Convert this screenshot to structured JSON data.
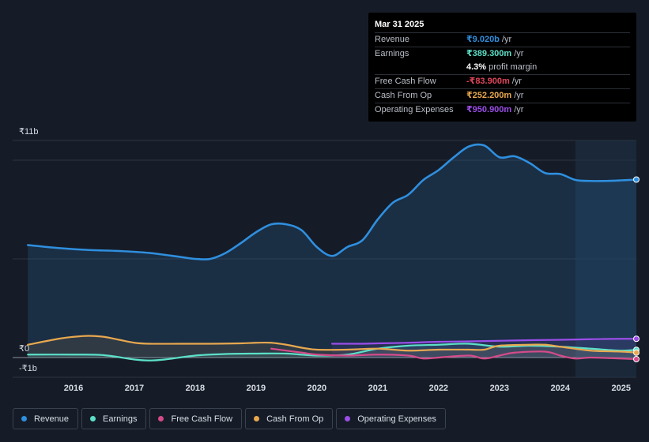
{
  "tooltip": {
    "date": "Mar 31 2025",
    "rows": [
      {
        "label": "Revenue",
        "value": "₹9.020b",
        "unit": "/yr",
        "color": "#2f8fdf"
      },
      {
        "label": "Earnings",
        "value": "₹389.300m",
        "unit": "/yr",
        "color": "#5ce0c8"
      },
      {
        "label": "",
        "value": "4.3%",
        "unit": "profit margin",
        "color": "#ffffff"
      },
      {
        "label": "Free Cash Flow",
        "value": "-₹83.900m",
        "unit": "/yr",
        "color": "#e0455a"
      },
      {
        "label": "Cash From Op",
        "value": "₹252.200m",
        "unit": "/yr",
        "color": "#e8a84f"
      },
      {
        "label": "Operating Expenses",
        "value": "₹950.900m",
        "unit": "/yr",
        "color": "#9b4ee8"
      }
    ]
  },
  "legend": [
    {
      "label": "Revenue",
      "color": "#2f8fdf"
    },
    {
      "label": "Earnings",
      "color": "#5ce0c8"
    },
    {
      "label": "Free Cash Flow",
      "color": "#d54b8a"
    },
    {
      "label": "Cash From Op",
      "color": "#e8a84f"
    },
    {
      "label": "Operating Expenses",
      "color": "#9b4ee8"
    }
  ],
  "chart_data": {
    "type": "line",
    "title": "",
    "xlabel": "",
    "ylabel": "",
    "y_top_label": "₹11b",
    "y_zero_label": "₹0",
    "y_bottom_label": "-₹1b",
    "ylim": [
      -1,
      11
    ],
    "xlim": [
      2015.0,
      2025.25
    ],
    "x_ticks": [
      "2016",
      "2017",
      "2018",
      "2019",
      "2020",
      "2021",
      "2022",
      "2023",
      "2024",
      "2025"
    ],
    "x_tick_values": [
      2016,
      2017,
      2018,
      2019,
      2020,
      2021,
      2022,
      2023,
      2024,
      2025
    ],
    "forecast_start": 2024.25,
    "series": [
      {
        "name": "Revenue",
        "color": "#2f8fdf",
        "fill": true,
        "x": [
          2015.25,
          2015.75,
          2016.25,
          2016.75,
          2017.25,
          2017.75,
          2018.0,
          2018.25,
          2018.5,
          2018.75,
          2019.0,
          2019.25,
          2019.5,
          2019.75,
          2020.0,
          2020.25,
          2020.5,
          2020.75,
          2021.0,
          2021.25,
          2021.5,
          2021.75,
          2022.0,
          2022.25,
          2022.5,
          2022.75,
          2023.0,
          2023.25,
          2023.5,
          2023.75,
          2024.0,
          2024.25,
          2024.5,
          2024.75,
          2025.0,
          2025.25
        ],
        "y": [
          5.7,
          5.55,
          5.45,
          5.4,
          5.3,
          5.1,
          5.0,
          5.0,
          5.3,
          5.8,
          6.35,
          6.75,
          6.75,
          6.45,
          5.6,
          5.15,
          5.6,
          5.95,
          7.0,
          7.85,
          8.25,
          9.0,
          9.5,
          10.15,
          10.7,
          10.75,
          10.15,
          10.2,
          9.85,
          9.35,
          9.3,
          9.0,
          8.95,
          8.95,
          8.98,
          9.02
        ]
      },
      {
        "name": "Earnings",
        "color": "#5ce0c8",
        "fill": true,
        "x": [
          2015.25,
          2016.0,
          2016.5,
          2017.0,
          2017.25,
          2017.5,
          2018.0,
          2018.5,
          2019.0,
          2019.5,
          2020.0,
          2020.5,
          2021.0,
          2021.5,
          2022.0,
          2022.5,
          2023.0,
          2023.5,
          2024.0,
          2024.5,
          2025.0,
          2025.25
        ],
        "y": [
          0.15,
          0.15,
          0.12,
          -0.1,
          -0.15,
          -0.1,
          0.1,
          0.18,
          0.2,
          0.2,
          0.1,
          0.15,
          0.45,
          0.6,
          0.65,
          0.7,
          0.55,
          0.6,
          0.55,
          0.45,
          0.35,
          0.39
        ]
      },
      {
        "name": "Free Cash Flow",
        "color": "#d54b8a",
        "fill": false,
        "x": [
          2019.25,
          2019.75,
          2020.0,
          2020.5,
          2021.0,
          2021.5,
          2021.75,
          2022.0,
          2022.5,
          2022.75,
          2023.0,
          2023.25,
          2023.75,
          2024.0,
          2024.25,
          2024.5,
          2025.0,
          2025.25
        ],
        "y": [
          0.45,
          0.25,
          0.15,
          0.1,
          0.15,
          0.1,
          -0.05,
          0.0,
          0.1,
          -0.05,
          0.1,
          0.25,
          0.3,
          0.1,
          -0.05,
          0.0,
          -0.05,
          -0.08
        ]
      },
      {
        "name": "Cash From Op",
        "color": "#e8a84f",
        "fill": true,
        "x": [
          2015.25,
          2015.75,
          2016.0,
          2016.25,
          2016.5,
          2016.75,
          2017.0,
          2017.25,
          2017.75,
          2018.25,
          2018.75,
          2019.0,
          2019.25,
          2019.5,
          2019.75,
          2020.0,
          2020.5,
          2021.0,
          2021.5,
          2022.0,
          2022.5,
          2022.75,
          2023.0,
          2023.5,
          2023.75,
          2024.0,
          2024.5,
          2025.0,
          2025.25
        ],
        "y": [
          0.65,
          0.95,
          1.05,
          1.1,
          1.05,
          0.9,
          0.75,
          0.7,
          0.7,
          0.7,
          0.72,
          0.75,
          0.75,
          0.65,
          0.5,
          0.4,
          0.4,
          0.45,
          0.35,
          0.4,
          0.4,
          0.4,
          0.6,
          0.65,
          0.65,
          0.55,
          0.35,
          0.3,
          0.25
        ]
      },
      {
        "name": "Operating Expenses",
        "color": "#9b4ee8",
        "fill": true,
        "x": [
          2020.25,
          2020.75,
          2021.0,
          2021.5,
          2022.0,
          2022.5,
          2023.0,
          2023.5,
          2024.0,
          2024.5,
          2025.0,
          2025.25
        ],
        "y": [
          0.7,
          0.7,
          0.72,
          0.75,
          0.8,
          0.82,
          0.85,
          0.88,
          0.9,
          0.93,
          0.95,
          0.95
        ]
      }
    ]
  }
}
